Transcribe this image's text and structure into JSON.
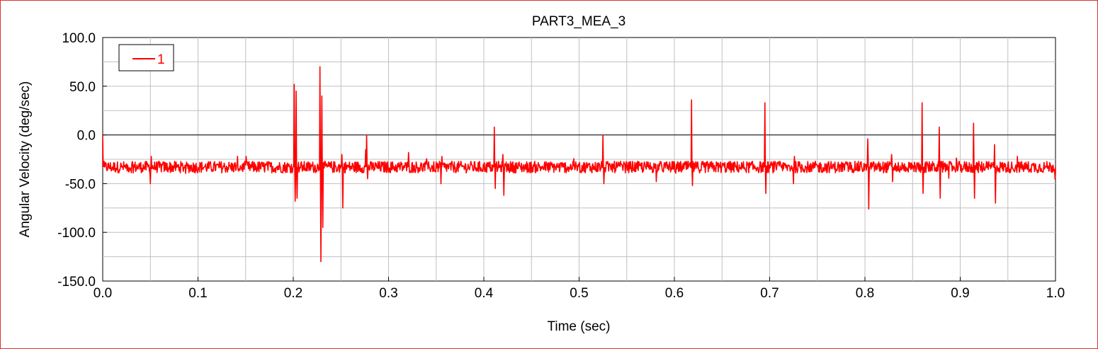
{
  "chart_data": {
    "type": "line",
    "title": "PART3_MEA_3",
    "xlabel": "Time (sec)",
    "ylabel": "Angular Velocity (deg/sec)",
    "xlim": [
      0.0,
      1.0
    ],
    "ylim": [
      -150.0,
      100.0
    ],
    "x_ticks": [
      "0.0",
      "0.1",
      "0.2",
      "0.3",
      "0.4",
      "0.5",
      "0.6",
      "0.7",
      "0.8",
      "0.9",
      "1.0"
    ],
    "y_ticks": [
      "100.0",
      "50.0",
      "0.0",
      "-50.0",
      "-100.0",
      "-150.0"
    ],
    "x_tick_values": [
      0.0,
      0.1,
      0.2,
      0.3,
      0.4,
      0.5,
      0.6,
      0.7,
      0.8,
      0.9,
      1.0
    ],
    "y_tick_values": [
      100,
      50,
      0,
      -50,
      -100,
      -150
    ],
    "grid": true,
    "legend_position": "top-left",
    "zero_line": true,
    "series": [
      {
        "name": "1",
        "color": "#ff0000",
        "baseline": -33,
        "x": [
          0.0,
          0.001,
          0.002,
          0.02,
          0.05,
          0.051,
          0.052,
          0.1,
          0.2,
          0.201,
          0.202,
          0.203,
          0.204,
          0.205,
          0.227,
          0.228,
          0.229,
          0.23,
          0.231,
          0.232,
          0.25,
          0.251,
          0.252,
          0.253,
          0.275,
          0.276,
          0.277,
          0.278,
          0.32,
          0.321,
          0.355,
          0.356,
          0.41,
          0.411,
          0.412,
          0.413,
          0.42,
          0.421,
          0.524,
          0.525,
          0.526,
          0.617,
          0.618,
          0.619,
          0.62,
          0.694,
          0.695,
          0.696,
          0.697,
          0.725,
          0.726,
          0.802,
          0.803,
          0.804,
          0.805,
          0.828,
          0.829,
          0.859,
          0.86,
          0.861,
          0.862,
          0.878,
          0.879,
          0.88,
          0.913,
          0.914,
          0.915,
          0.916,
          0.935,
          0.936,
          0.937,
          0.96,
          0.99,
          1.0
        ],
        "y": [
          0,
          -30,
          -33,
          -33,
          -50,
          -22,
          -33,
          -33,
          -33,
          52,
          -68,
          45,
          -65,
          -33,
          -33,
          70,
          -130,
          40,
          -95,
          -33,
          -33,
          -20,
          -75,
          -33,
          -33,
          -15,
          0,
          -45,
          -33,
          -18,
          -50,
          -22,
          -33,
          8,
          -55,
          -33,
          -20,
          -62,
          -33,
          0,
          -50,
          -33,
          36,
          -52,
          -33,
          -33,
          33,
          -60,
          -33,
          -50,
          -22,
          -33,
          -4,
          -76,
          -33,
          -20,
          -48,
          -33,
          33,
          -60,
          -33,
          8,
          -65,
          -33,
          -33,
          12,
          -65,
          -33,
          -33,
          -10,
          -70,
          -22,
          -33,
          -40
        ]
      }
    ]
  }
}
